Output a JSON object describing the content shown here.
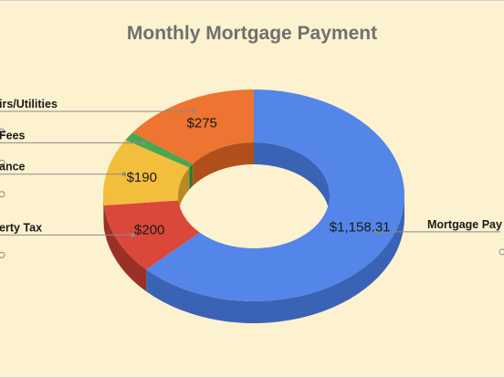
{
  "chart_data": {
    "type": "pie",
    "style": "3d-donut",
    "title": "Monthly Mortgage Payment",
    "slices": [
      {
        "label": "Mortgage Payment",
        "label_visible": "Mortgage Pay",
        "value": 1158.31,
        "value_text": "$1,158.31",
        "color": "#5386e8",
        "dark": "#3a63b5"
      },
      {
        "label": "Property Tax",
        "label_visible": "erty Tax",
        "value": 200,
        "value_text": "$200",
        "color": "#d9483b",
        "dark": "#9a3026"
      },
      {
        "label": "Insurance",
        "label_visible": "ance",
        "value": 190,
        "value_text": "$190",
        "color": "#f2be3c",
        "dark": "#b88a22"
      },
      {
        "label": "Fees",
        "label_visible": "Fees",
        "value": 25,
        "value_text": "",
        "color": "#4da64f",
        "dark": "#2f7a33"
      },
      {
        "label": "Repairs/Utilities",
        "label_visible": "irs/Utilities",
        "value": 275,
        "value_text": "$275",
        "color": "#ee7431",
        "dark": "#b04f1c"
      }
    ],
    "legend": "none (leader-line labels)",
    "colors": {
      "background": "#fdf2cf",
      "title": "#707070",
      "leader": "#8a8a8a"
    }
  }
}
